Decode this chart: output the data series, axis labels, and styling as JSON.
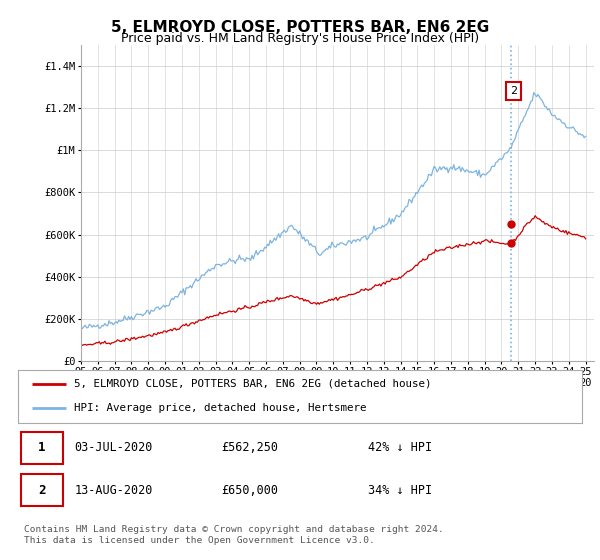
{
  "title": "5, ELMROYD CLOSE, POTTERS BAR, EN6 2EG",
  "subtitle": "Price paid vs. HM Land Registry's House Price Index (HPI)",
  "ylim": [
    0,
    1500000
  ],
  "yticks": [
    0,
    200000,
    400000,
    600000,
    800000,
    1000000,
    1200000,
    1400000
  ],
  "ytick_labels": [
    "£0",
    "£200K",
    "£400K",
    "£600K",
    "£800K",
    "£1M",
    "£1.2M",
    "£1.4M"
  ],
  "hpi_color": "#7db4e0",
  "price_color": "#cc0000",
  "vline_color": "#7db4e0",
  "legend_label_price": "5, ELMROYD CLOSE, POTTERS BAR, EN6 2EG (detached house)",
  "legend_label_hpi": "HPI: Average price, detached house, Hertsmere",
  "table_row1": [
    "1",
    "03-JUL-2020",
    "£562,250",
    "42% ↓ HPI"
  ],
  "table_row2": [
    "2",
    "13-AUG-2020",
    "£650,000",
    "34% ↓ HPI"
  ],
  "footer": "Contains HM Land Registry data © Crown copyright and database right 2024.\nThis data is licensed under the Open Government Licence v3.0.",
  "background_color": "#ffffff",
  "grid_color": "#cccccc",
  "title_fontsize": 11,
  "subtitle_fontsize": 9,
  "tick_fontsize": 7.5,
  "vline_x": 2020.58
}
